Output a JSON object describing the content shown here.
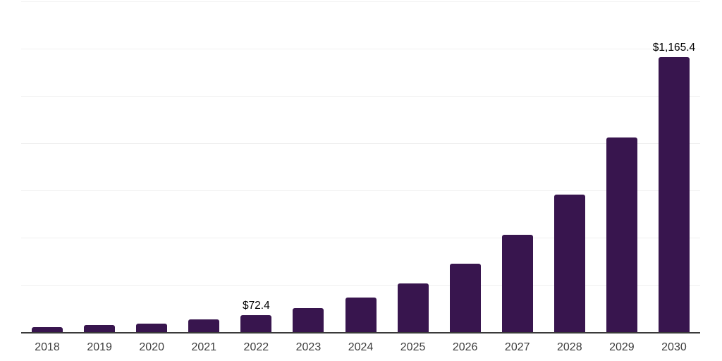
{
  "chart_data": {
    "type": "bar",
    "title": "",
    "xlabel": "",
    "ylabel": "",
    "categories": [
      "2018",
      "2019",
      "2020",
      "2021",
      "2022",
      "2023",
      "2024",
      "2025",
      "2026",
      "2027",
      "2028",
      "2029",
      "2030"
    ],
    "values": [
      22,
      29,
      37,
      55,
      72.4,
      102.5,
      145.1,
      205.3,
      290.6,
      411.3,
      582.1,
      823.7,
      1165.4
    ],
    "data_labels": [
      {
        "category": "2022",
        "index": 4,
        "text": "$72.4"
      },
      {
        "category": "2030",
        "index": 12,
        "text": "$1,165.4"
      }
    ],
    "ylim": [
      0,
      1400
    ],
    "gridline_step": 200,
    "grid": "horizontal-only",
    "y_tick_labels_visible": false,
    "legend": "none",
    "colors": {
      "bar": "#38154e",
      "gridline": "#f0f0f0",
      "axis": "#3a3a3a",
      "x_tick_label": "#3d3d3d",
      "data_label": "#000000",
      "background": "#ffffff"
    }
  }
}
